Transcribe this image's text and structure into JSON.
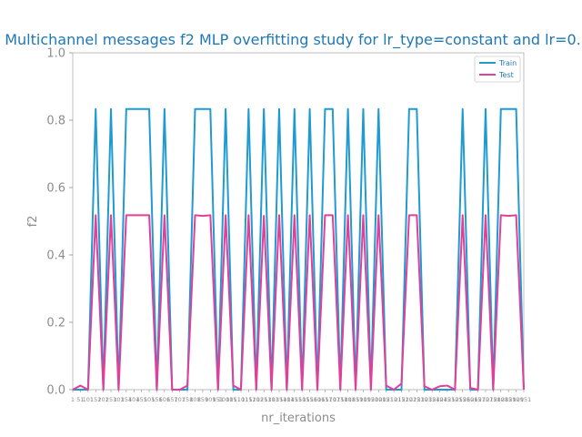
{
  "chart_data": {
    "type": "line",
    "title": "Multichannel messages f2 MLP overfitting study for lr_type=constant and lr=0.",
    "xlabel": "nr_iterations",
    "ylabel": "f2",
    "ylim": [
      0,
      1.0
    ],
    "yticks": [
      "0.0",
      "0.2",
      "0.4",
      "0.6",
      "0.8",
      "1.0"
    ],
    "grid": false,
    "legend_position": "top-right",
    "categories": [
      "1",
      "51",
      "101",
      "151",
      "201",
      "251",
      "301",
      "351",
      "401",
      "451",
      "501",
      "551",
      "601",
      "651",
      "701",
      "751",
      "801",
      "851",
      "901",
      "951",
      "1001",
      "1051",
      "1101",
      "1151",
      "1201",
      "1251",
      "1301",
      "1351",
      "1401",
      "1451",
      "1501",
      "1551",
      "1601",
      "1651",
      "1701",
      "1751",
      "1801",
      "1851",
      "1901",
      "1951",
      "2001",
      "2051",
      "2101",
      "2151",
      "2201",
      "2251",
      "2301",
      "2351",
      "2401",
      "2451",
      "2501",
      "2551",
      "2601",
      "2651",
      "2701",
      "2751",
      "2801",
      "2851",
      "2901",
      "2951"
    ],
    "series": [
      {
        "name": "Train",
        "color": "#1f9bd1",
        "values": [
          0,
          0,
          0,
          0.833,
          0,
          0.833,
          0,
          0.833,
          0.833,
          0.833,
          0.833,
          0,
          0.833,
          0,
          0,
          0,
          0.833,
          0.833,
          0.833,
          0,
          0.833,
          0,
          0,
          0.833,
          0,
          0.833,
          0,
          0.833,
          0,
          0.833,
          0,
          0.833,
          0,
          0.833,
          0.833,
          0,
          0.833,
          0,
          0.833,
          0,
          0.833,
          0,
          0,
          0,
          0.833,
          0.833,
          0,
          0,
          0,
          0,
          0,
          0.833,
          0,
          0,
          0.833,
          0,
          0.833,
          0.833,
          0.833,
          0
        ]
      },
      {
        "name": "Test",
        "color": "#e0409a",
        "values": [
          0,
          0.012,
          0,
          0.518,
          0,
          0.518,
          0,
          0.518,
          0.518,
          0.518,
          0.518,
          0,
          0.518,
          0,
          0,
          0.012,
          0.518,
          0.516,
          0.518,
          0,
          0.518,
          0.012,
          0,
          0.518,
          0,
          0.516,
          0,
          0.518,
          0,
          0.518,
          0,
          0.518,
          0,
          0.518,
          0.518,
          0,
          0.518,
          0,
          0.518,
          0,
          0.518,
          0.012,
          0,
          0.018,
          0.518,
          0.518,
          0.01,
          0,
          0.01,
          0.012,
          0,
          0.518,
          0.005,
          0,
          0.518,
          0,
          0.518,
          0.516,
          0.518,
          0
        ]
      }
    ]
  }
}
